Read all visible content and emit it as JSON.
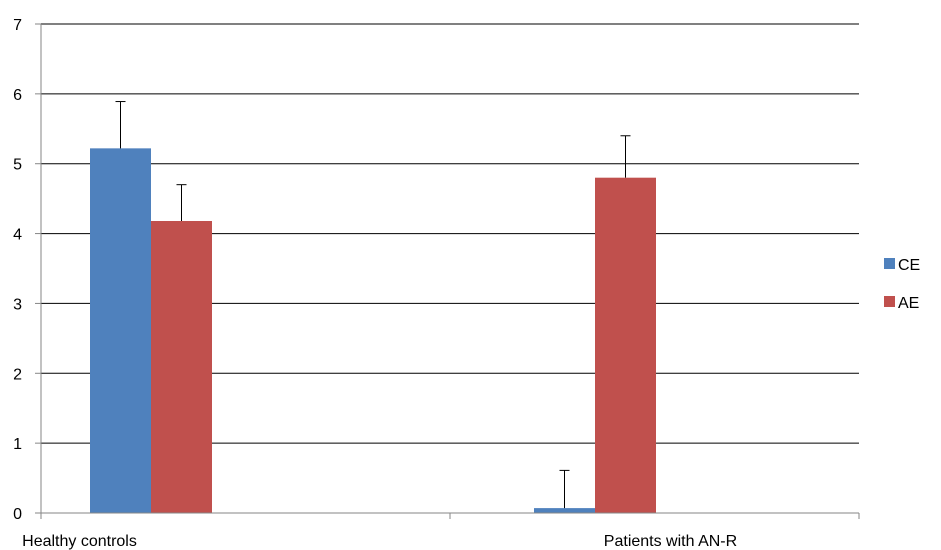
{
  "chart_data": {
    "type": "bar",
    "title": "",
    "xlabel": "",
    "ylabel": "",
    "categories": [
      "Healthy controls",
      "Patients with AN-R"
    ],
    "series": [
      {
        "name": "CE",
        "color": "#4F81BD",
        "values": [
          5.22,
          0.07
        ],
        "error_plus": [
          0.67,
          0.54
        ]
      },
      {
        "name": "AE",
        "color": "#C0504D",
        "values": [
          4.18,
          4.8
        ],
        "error_plus": [
          0.52,
          0.6
        ]
      }
    ],
    "ylim": [
      0,
      7
    ],
    "yticks": [
      "0",
      "1",
      "2",
      "3",
      "4",
      "5",
      "6",
      "7"
    ],
    "grid": true,
    "legend_position": "right"
  }
}
